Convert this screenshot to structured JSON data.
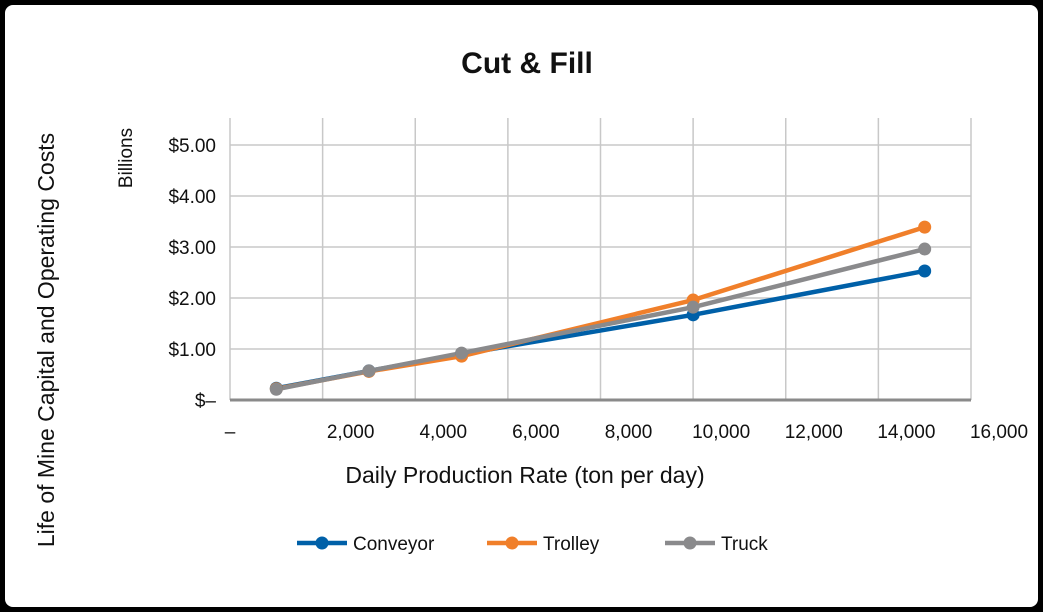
{
  "chart_data": {
    "type": "line",
    "title": "Cut & Fill",
    "xlabel": "Daily Production Rate (ton per day)",
    "ylabel": "Life of Mine Capital and Operating Costs",
    "yunit": "Billions",
    "xlim": [
      0,
      16000
    ],
    "ylim": [
      0,
      5.5
    ],
    "xticks": [
      0,
      2000,
      4000,
      6000,
      8000,
      10000,
      12000,
      14000,
      16000
    ],
    "xtick_labels": [
      "–",
      "2,000",
      "4,000",
      "6,000",
      "8,000",
      "10,000",
      "12,000",
      "14,000",
      "16,000"
    ],
    "yticks": [
      0,
      1,
      2,
      3,
      4,
      5
    ],
    "ytick_labels": [
      "$–",
      "$1.00",
      "$2.00",
      "$3.00",
      "$4.00",
      "$5.00"
    ],
    "grid": true,
    "legend_position": "bottom",
    "x": [
      1000,
      3000,
      5000,
      10000,
      15000
    ],
    "series": [
      {
        "name": "Conveyor",
        "color": "#0060a8",
        "values": [
          0.23,
          0.57,
          0.9,
          1.67,
          2.53
        ]
      },
      {
        "name": "Trolley",
        "color": "#f07f2a",
        "values": [
          0.22,
          0.56,
          0.86,
          1.96,
          3.39
        ]
      },
      {
        "name": "Truck",
        "color": "#8a8a8c",
        "values": [
          0.21,
          0.57,
          0.92,
          1.82,
          2.96
        ]
      }
    ]
  }
}
